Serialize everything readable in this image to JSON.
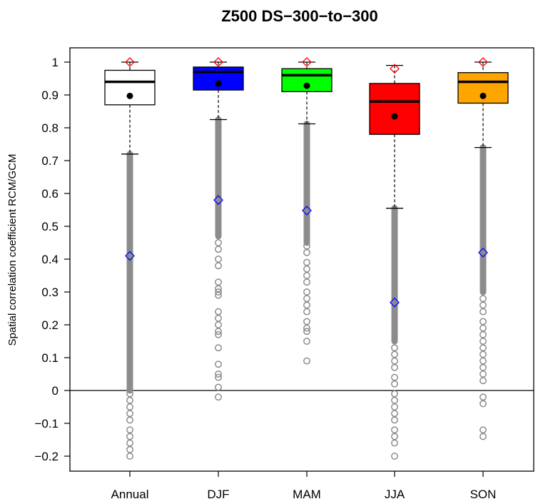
{
  "chart_data": {
    "type": "box",
    "title": "Z500 DS−300−to−300",
    "ylabel": "Spatial correlation coefficient RCM/GCM",
    "xlabel": "",
    "ylim": [
      -0.25,
      1.04
    ],
    "yticks": [
      -0.2,
      -0.1,
      0,
      0.1,
      0.2,
      0.3,
      0.4,
      0.5,
      0.6,
      0.7,
      0.8,
      0.9,
      1
    ],
    "ytick_labels": [
      "−0.2",
      "−0.1",
      "0",
      "0.1",
      "0.2",
      "0.3",
      "0.4",
      "0.5",
      "0.6",
      "0.7",
      "0.8",
      "0.9",
      "1"
    ],
    "zero_line": 0,
    "categories": [
      "Annual",
      "DJF",
      "MAM",
      "JJA",
      "SON"
    ],
    "boxes": [
      {
        "name": "Annual",
        "color": "#ffffff",
        "q1": 0.87,
        "median": 0.94,
        "q3": 0.975,
        "whisker_low": 0.72,
        "whisker_high": 1.0,
        "mean": 0.897,
        "max_marker": 1.0,
        "min_marker": 0.41,
        "outlier_continuous_range": [
          0.0,
          0.72
        ],
        "outliers": [
          -0.01,
          -0.03,
          -0.05,
          -0.07,
          -0.09,
          -0.12,
          -0.14,
          -0.16,
          -0.18,
          -0.2
        ]
      },
      {
        "name": "DJF",
        "color": "#0000ff",
        "q1": 0.915,
        "median": 0.97,
        "q3": 0.985,
        "whisker_low": 0.825,
        "whisker_high": 1.0,
        "mean": 0.935,
        "max_marker": 1.0,
        "min_marker": 0.58,
        "outlier_continuous_range": [
          0.47,
          0.825
        ],
        "outliers": [
          0.45,
          0.43,
          0.4,
          0.38,
          0.33,
          0.31,
          0.3,
          0.29,
          0.24,
          0.22,
          0.2,
          0.18,
          0.17,
          0.13,
          0.08,
          0.05,
          0.04,
          0.01,
          -0.02
        ]
      },
      {
        "name": "MAM",
        "color": "#00ff00",
        "q1": 0.91,
        "median": 0.96,
        "q3": 0.98,
        "whisker_low": 0.812,
        "whisker_high": 1.0,
        "mean": 0.928,
        "max_marker": 1.0,
        "min_marker": 0.548,
        "outlier_continuous_range": [
          0.45,
          0.812
        ],
        "outliers": [
          0.44,
          0.42,
          0.39,
          0.37,
          0.35,
          0.33,
          0.3,
          0.28,
          0.26,
          0.24,
          0.21,
          0.19,
          0.18,
          0.15,
          0.09
        ]
      },
      {
        "name": "JJA",
        "color": "#ff0000",
        "q1": 0.78,
        "median": 0.88,
        "q3": 0.935,
        "whisker_low": 0.555,
        "whisker_high": 0.99,
        "mean": 0.835,
        "max_marker": 0.98,
        "min_marker": 0.268,
        "outlier_continuous_range": [
          0.15,
          0.555
        ],
        "outliers": [
          0.13,
          0.11,
          0.09,
          0.07,
          0.04,
          0.02,
          -0.01,
          -0.03,
          -0.05,
          -0.07,
          -0.09,
          -0.12,
          -0.14,
          -0.16,
          -0.2
        ]
      },
      {
        "name": "SON",
        "color": "#ffa500",
        "q1": 0.875,
        "median": 0.94,
        "q3": 0.968,
        "whisker_low": 0.74,
        "whisker_high": 1.0,
        "mean": 0.897,
        "max_marker": 1.0,
        "min_marker": 0.42,
        "outlier_continuous_range": [
          0.3,
          0.74
        ],
        "outliers": [
          0.28,
          0.26,
          0.24,
          0.21,
          0.19,
          0.17,
          0.15,
          0.13,
          0.11,
          0.09,
          0.07,
          0.05,
          0.03,
          -0.02,
          -0.04,
          -0.12,
          -0.14
        ]
      }
    ],
    "grid": false,
    "legend": "none"
  }
}
